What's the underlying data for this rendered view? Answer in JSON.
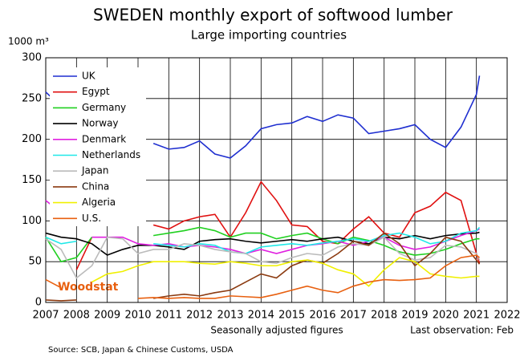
{
  "chart_data": {
    "type": "line",
    "title": "SWEDEN  monthly export of softwood lumber",
    "subtitle": "Large importing countries",
    "y_unit": "1000 m³",
    "x_label": "Seasonally adjusted figures",
    "note": "Last observation: Feb",
    "source": "Source: SCB, Japan & Chinese Customs, USDA",
    "brand": "Woodstat",
    "grid": true,
    "legend": "upper left",
    "xlim": [
      2007,
      2022
    ],
    "xticks": [
      2007,
      2008,
      2009,
      2010,
      2011,
      2012,
      2013,
      2014,
      2015,
      2016,
      2017,
      2018,
      2019,
      2020,
      2021,
      2022
    ],
    "ylim": [
      0,
      300
    ],
    "yticks": [
      0,
      50,
      100,
      150,
      200,
      250,
      300
    ],
    "x": [
      2007,
      2007.5,
      2008,
      2008.5,
      2009,
      2009.5,
      2010,
      2010.5,
      2011,
      2011.5,
      2012,
      2012.5,
      2013,
      2013.5,
      2014,
      2014.5,
      2015,
      2015.5,
      2016,
      2016.5,
      2017,
      2017.5,
      2018,
      2018.5,
      2019,
      2019.5,
      2020,
      2020.5,
      2021,
      2021.1
    ],
    "series": [
      {
        "name": "UK",
        "color": "#1f2fd0",
        "values": [
          258,
          240,
          null,
          null,
          null,
          null,
          null,
          195,
          188,
          190,
          198,
          182,
          177,
          192,
          213,
          218,
          220,
          228,
          222,
          230,
          226,
          207,
          210,
          213,
          218,
          200,
          190,
          215,
          255,
          278
        ]
      },
      {
        "name": "Egypt",
        "color": "#e01010",
        "values": [
          null,
          null,
          40,
          80,
          null,
          null,
          null,
          95,
          90,
          100,
          105,
          108,
          80,
          110,
          148,
          125,
          95,
          93,
          75,
          72,
          90,
          105,
          85,
          80,
          110,
          118,
          135,
          125,
          60,
          48
        ]
      },
      {
        "name": "Germany",
        "color": "#20d020",
        "values": [
          80,
          50,
          55,
          80,
          null,
          null,
          null,
          82,
          85,
          88,
          92,
          88,
          80,
          85,
          85,
          78,
          82,
          85,
          78,
          72,
          80,
          76,
          70,
          62,
          58,
          60,
          65,
          72,
          78,
          78
        ]
      },
      {
        "name": "Norway",
        "color": "#000000",
        "values": [
          85,
          80,
          78,
          72,
          58,
          65,
          70,
          70,
          68,
          65,
          75,
          77,
          78,
          75,
          73,
          75,
          77,
          75,
          78,
          80,
          75,
          72,
          80,
          78,
          82,
          78,
          82,
          84,
          85,
          86
        ]
      },
      {
        "name": "Denmark",
        "color": "#e020e0",
        "values": [
          125,
          110,
          null,
          80,
          80,
          80,
          72,
          70,
          72,
          68,
          70,
          68,
          65,
          60,
          65,
          60,
          65,
          70,
          72,
          75,
          70,
          75,
          80,
          70,
          65,
          68,
          75,
          82,
          88,
          90
        ]
      },
      {
        "name": "Netherlands",
        "color": "#20e8e8",
        "values": [
          80,
          72,
          75,
          null,
          null,
          null,
          null,
          72,
          70,
          68,
          72,
          70,
          62,
          60,
          68,
          70,
          72,
          70,
          73,
          75,
          78,
          75,
          82,
          85,
          80,
          72,
          75,
          85,
          88,
          92
        ]
      },
      {
        "name": "Japan",
        "color": "#bbbbbb",
        "values": [
          78,
          65,
          30,
          45,
          80,
          78,
          60,
          65,
          65,
          72,
          70,
          65,
          62,
          60,
          50,
          48,
          55,
          60,
          58,
          68,
          72,
          70,
          80,
          60,
          52,
          55,
          70,
          68,
          60,
          52
        ]
      },
      {
        "name": "China",
        "color": "#8b3a10",
        "values": [
          3,
          2,
          3,
          null,
          null,
          null,
          null,
          5,
          8,
          10,
          8,
          12,
          15,
          25,
          35,
          30,
          45,
          52,
          48,
          60,
          75,
          70,
          85,
          72,
          45,
          60,
          80,
          75,
          52,
          47
        ]
      },
      {
        "name": "Algeria",
        "color": "#f0f000",
        "values": [
          null,
          null,
          null,
          25,
          35,
          38,
          45,
          50,
          50,
          50,
          48,
          47,
          50,
          48,
          45,
          45,
          50,
          52,
          48,
          40,
          35,
          20,
          40,
          55,
          50,
          35,
          32,
          30,
          32,
          32
        ]
      },
      {
        "name": "U.S.",
        "color": "#e86010",
        "values": [
          28,
          18,
          null,
          null,
          null,
          null,
          5,
          6,
          5,
          6,
          5,
          5,
          8,
          7,
          6,
          10,
          15,
          20,
          15,
          12,
          20,
          25,
          28,
          27,
          28,
          30,
          45,
          55,
          58,
          55
        ]
      }
    ]
  }
}
